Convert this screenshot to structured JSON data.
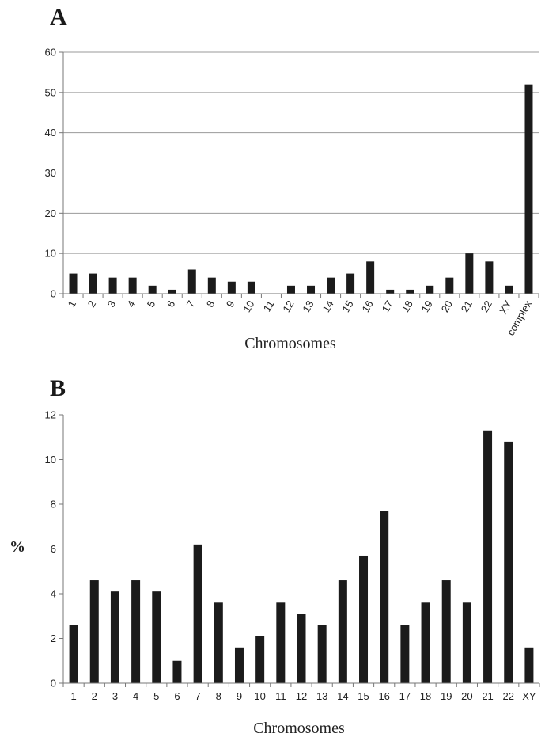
{
  "chart_data": [
    {
      "panel_label": "A",
      "type": "bar",
      "xlabel": "Chromosomes",
      "ylabel": "",
      "ylim": [
        0,
        60
      ],
      "yticks": [
        0,
        10,
        20,
        30,
        40,
        50,
        60
      ],
      "grid": true,
      "bar_color": "#1b1b1b",
      "categories": [
        "1",
        "2",
        "3",
        "4",
        "5",
        "6",
        "7",
        "8",
        "9",
        "10",
        "11",
        "12",
        "13",
        "14",
        "15",
        "16",
        "17",
        "18",
        "19",
        "20",
        "21",
        "22",
        "XY",
        "complex"
      ],
      "values": [
        5,
        5,
        4,
        4,
        2,
        1,
        6,
        4,
        3,
        3,
        0,
        2,
        2,
        4,
        5,
        8,
        1,
        1,
        2,
        4,
        10,
        8,
        2,
        52
      ]
    },
    {
      "panel_label": "B",
      "type": "bar",
      "xlabel": "Chromosomes",
      "ylabel": "%",
      "ylim": [
        0,
        12
      ],
      "yticks": [
        0,
        2,
        4,
        6,
        8,
        10,
        12
      ],
      "grid": false,
      "bar_color": "#1b1b1b",
      "categories": [
        "1",
        "2",
        "3",
        "4",
        "5",
        "6",
        "7",
        "8",
        "9",
        "10",
        "11",
        "12",
        "13",
        "14",
        "15",
        "16",
        "17",
        "18",
        "19",
        "20",
        "21",
        "22",
        "XY"
      ],
      "values": [
        2.6,
        4.6,
        4.1,
        4.6,
        4.1,
        1.0,
        6.2,
        3.6,
        1.6,
        2.1,
        3.6,
        3.1,
        2.6,
        4.6,
        5.7,
        7.7,
        2.6,
        3.6,
        4.6,
        3.6,
        11.3,
        10.8,
        1.6
      ]
    }
  ]
}
